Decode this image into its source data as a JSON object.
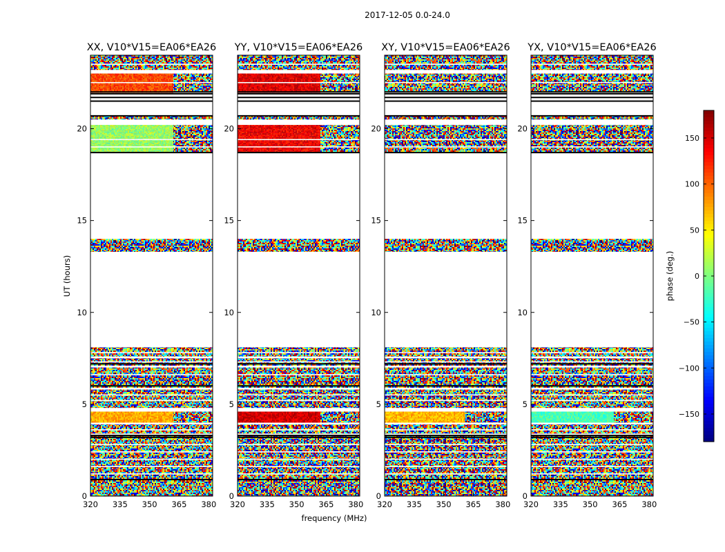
{
  "figure_title": "2017-12-05 0.0-24.0",
  "colors": {
    "jet_stops": [
      "#00007f",
      "#0000ff",
      "#007fff",
      "#00ffff",
      "#7fff7f",
      "#ffff00",
      "#ff7f00",
      "#ff0000",
      "#7f0000"
    ],
    "axis": "#000000",
    "flag_line": "#000000"
  },
  "chart_data": {
    "type": "heatmap",
    "xlabel": "frequency (MHz)",
    "ylabel": "UT (hours)",
    "xlim": [
      320,
      382
    ],
    "ylim": [
      0,
      24
    ],
    "xticks": [
      "320",
      "335",
      "350",
      "365",
      "380"
    ],
    "yticks": [
      "0",
      "5",
      "10",
      "15",
      "20"
    ],
    "colorbar": {
      "label": "phase (deg.)",
      "range": [
        -180,
        180
      ],
      "ticks": [
        "150",
        "100",
        "50",
        "0",
        "−50",
        "−100",
        "−150"
      ]
    },
    "data_bands_ut": [
      [
        0.0,
        3.3
      ],
      [
        3.4,
        3.9
      ],
      [
        4.0,
        4.6
      ],
      [
        4.8,
        5.8
      ],
      [
        5.9,
        7.0
      ],
      [
        7.1,
        7.5
      ],
      [
        7.6,
        8.1
      ],
      [
        13.3,
        14.0
      ],
      [
        18.7,
        20.2
      ],
      [
        20.5,
        20.7
      ],
      [
        22.0,
        23.0
      ],
      [
        23.2,
        24.0
      ]
    ],
    "flag_lines_ut": [
      0.9,
      3.2,
      3.3,
      6.0,
      7.2,
      18.7,
      20.7,
      21.5,
      21.7,
      21.9,
      22.0
    ],
    "panels": [
      {
        "title": "XX, V10*V15=EA06*EA26",
        "coherent_bands": [
          {
            "ut": [
              4.0,
              4.6
            ],
            "phase": 75,
            "transition_mhz": 362
          },
          {
            "ut": [
              18.7,
              20.2
            ],
            "phase": 10,
            "transition_mhz": 362
          },
          {
            "ut": [
              22.0,
              23.0
            ],
            "phase": 110,
            "transition_mhz": 362
          }
        ]
      },
      {
        "title": "YY, V10*V15=EA06*EA26",
        "coherent_bands": [
          {
            "ut": [
              4.0,
              4.6
            ],
            "phase": 150,
            "transition_mhz": 362
          },
          {
            "ut": [
              18.7,
              20.2
            ],
            "phase": 140,
            "transition_mhz": 362
          },
          {
            "ut": [
              22.0,
              23.0
            ],
            "phase": 145,
            "transition_mhz": 362
          }
        ]
      },
      {
        "title": "XY, V10*V15=EA06*EA26",
        "coherent_bands": [
          {
            "ut": [
              4.0,
              4.6
            ],
            "phase": 70,
            "transition_mhz": 360
          }
        ]
      },
      {
        "title": "YX, V10*V15=EA06*EA26",
        "coherent_bands": [
          {
            "ut": [
              4.0,
              4.6
            ],
            "phase": -20,
            "transition_mhz": 362
          }
        ]
      }
    ]
  }
}
